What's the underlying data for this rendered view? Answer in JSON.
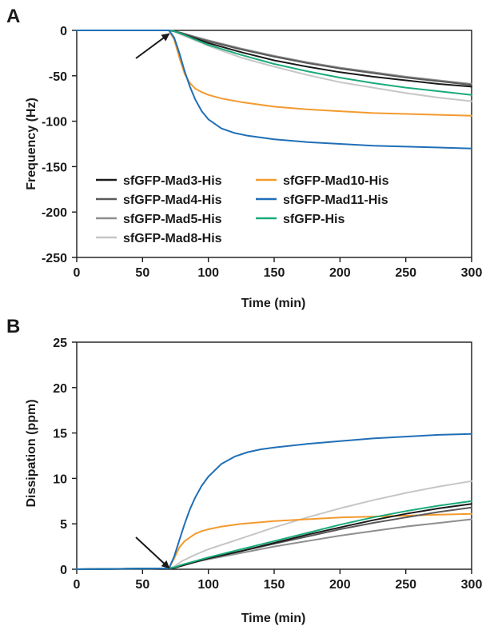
{
  "figure": {
    "panels": [
      {
        "label": "A"
      },
      {
        "label": "B"
      }
    ]
  },
  "chart_data": [
    {
      "type": "line",
      "panel": "A",
      "title": "",
      "xlabel": "Time (min)",
      "ylabel": "Frequency (Hz)",
      "xlim": [
        0,
        300
      ],
      "ylim": [
        -250,
        0
      ],
      "xticks": [
        0,
        50,
        100,
        150,
        200,
        250,
        300
      ],
      "yticks": [
        0,
        -50,
        -100,
        -150,
        -200,
        -250
      ],
      "grid": false,
      "legend_position": "bottom-left",
      "annotation": {
        "type": "arrow",
        "points_to": [
          72,
          -2
        ]
      },
      "series": [
        {
          "name": "sfGFP-Mad3-His",
          "color": "#1a1a1a",
          "x": [
            0,
            70,
            74,
            80,
            90,
            100,
            125,
            150,
            175,
            200,
            225,
            250,
            275,
            300
          ],
          "values": [
            0,
            0,
            -1,
            -4,
            -9,
            -14,
            -24,
            -33,
            -40,
            -46,
            -51,
            -55,
            -59,
            -62
          ]
        },
        {
          "name": "sfGFP-Mad4-His",
          "color": "#5a5a5a",
          "x": [
            0,
            70,
            74,
            80,
            90,
            100,
            125,
            150,
            175,
            200,
            225,
            250,
            275,
            300
          ],
          "values": [
            0,
            0,
            -1,
            -3,
            -8,
            -12,
            -21,
            -29,
            -36,
            -42,
            -47,
            -52,
            -56,
            -60
          ]
        },
        {
          "name": "sfGFP-Mad5-His",
          "color": "#8e8e8e",
          "x": [
            0,
            70,
            74,
            80,
            90,
            100,
            125,
            150,
            175,
            200,
            225,
            250,
            275,
            300
          ],
          "values": [
            0,
            0,
            -1,
            -3,
            -7,
            -11,
            -20,
            -28,
            -35,
            -41,
            -46,
            -51,
            -55,
            -59
          ]
        },
        {
          "name": "sfGFP-Mad8-His",
          "color": "#c6c6c6",
          "x": [
            0,
            70,
            74,
            80,
            90,
            100,
            125,
            150,
            175,
            200,
            225,
            250,
            275,
            300
          ],
          "values": [
            0,
            0,
            -1,
            -5,
            -11,
            -17,
            -30,
            -40,
            -49,
            -57,
            -63,
            -69,
            -74,
            -78
          ]
        },
        {
          "name": "sfGFP-Mad10-His",
          "color": "#f39a2e",
          "x": [
            0,
            70,
            74,
            78,
            82,
            86,
            90,
            95,
            100,
            110,
            125,
            150,
            175,
            200,
            225,
            250,
            275,
            300
          ],
          "values": [
            0,
            0,
            -10,
            -30,
            -48,
            -58,
            -64,
            -68,
            -71,
            -75,
            -79,
            -84,
            -87,
            -89,
            -91,
            -92,
            -93,
            -94
          ]
        },
        {
          "name": "sfGFP-Mad11-His",
          "color": "#1f6fb7",
          "x": [
            0,
            70,
            74,
            78,
            82,
            86,
            90,
            95,
            100,
            110,
            120,
            130,
            140,
            150,
            175,
            200,
            225,
            250,
            275,
            300
          ],
          "values": [
            0,
            0,
            -8,
            -25,
            -45,
            -62,
            -76,
            -89,
            -98,
            -108,
            -113,
            -116,
            -118,
            -120,
            -123,
            -125,
            -127,
            -128,
            -129,
            -130
          ]
        },
        {
          "name": "sfGFP-His",
          "color": "#1aaa7d",
          "x": [
            0,
            70,
            74,
            80,
            90,
            100,
            125,
            150,
            175,
            200,
            225,
            250,
            275,
            300
          ],
          "values": [
            0,
            0,
            -1,
            -4,
            -10,
            -16,
            -27,
            -37,
            -45,
            -52,
            -58,
            -63,
            -67,
            -71
          ]
        }
      ]
    },
    {
      "type": "line",
      "panel": "B",
      "title": "",
      "xlabel": "Time (min)",
      "ylabel": "Dissipation (ppm)",
      "xlim": [
        0,
        300
      ],
      "ylim": [
        0,
        25
      ],
      "xticks": [
        0,
        50,
        100,
        150,
        200,
        250,
        300
      ],
      "yticks": [
        0,
        5,
        10,
        15,
        20,
        25
      ],
      "grid": false,
      "annotation": {
        "type": "arrow",
        "points_to": [
          72,
          0.3
        ]
      },
      "series": [
        {
          "name": "sfGFP-Mad3-His",
          "color": "#1a1a1a",
          "x": [
            0,
            70,
            74,
            80,
            90,
            100,
            125,
            150,
            175,
            200,
            225,
            250,
            275,
            300
          ],
          "values": [
            0,
            0.1,
            0.15,
            0.4,
            0.8,
            1.2,
            2.0,
            2.9,
            3.8,
            4.6,
            5.4,
            6.1,
            6.7,
            7.2
          ]
        },
        {
          "name": "sfGFP-Mad4-His",
          "color": "#5a5a5a",
          "x": [
            0,
            70,
            74,
            80,
            90,
            100,
            125,
            150,
            175,
            200,
            225,
            250,
            275,
            300
          ],
          "values": [
            0,
            0.1,
            0.15,
            0.4,
            0.8,
            1.2,
            2.0,
            2.8,
            3.6,
            4.4,
            5.1,
            5.7,
            6.3,
            6.8
          ]
        },
        {
          "name": "sfGFP-Mad5-His",
          "color": "#8e8e8e",
          "x": [
            0,
            70,
            74,
            80,
            90,
            100,
            125,
            150,
            175,
            200,
            225,
            250,
            275,
            300
          ],
          "values": [
            0,
            0.1,
            0.15,
            0.4,
            0.8,
            1.1,
            1.8,
            2.5,
            3.1,
            3.7,
            4.2,
            4.7,
            5.1,
            5.5
          ]
        },
        {
          "name": "sfGFP-Mad8-His",
          "color": "#c6c6c6",
          "x": [
            0,
            70,
            74,
            80,
            90,
            100,
            125,
            150,
            175,
            200,
            225,
            250,
            275,
            300
          ],
          "values": [
            0,
            0.1,
            0.3,
            0.9,
            1.6,
            2.2,
            3.4,
            4.6,
            5.7,
            6.7,
            7.6,
            8.4,
            9.1,
            9.7
          ]
        },
        {
          "name": "sfGFP-Mad10-His",
          "color": "#f39a2e",
          "x": [
            0,
            70,
            74,
            78,
            82,
            86,
            90,
            95,
            100,
            110,
            125,
            150,
            175,
            200,
            225,
            250,
            275,
            300
          ],
          "values": [
            0,
            0.1,
            1.2,
            2.4,
            3.1,
            3.5,
            3.9,
            4.2,
            4.4,
            4.7,
            5.0,
            5.3,
            5.5,
            5.7,
            5.8,
            5.9,
            6.0,
            6.1
          ]
        },
        {
          "name": "sfGFP-Mad11-His",
          "color": "#1f6fb7",
          "x": [
            0,
            70,
            74,
            78,
            82,
            86,
            90,
            95,
            100,
            110,
            120,
            130,
            140,
            150,
            175,
            200,
            225,
            250,
            275,
            300
          ],
          "values": [
            0,
            0.1,
            1.4,
            3.2,
            5.0,
            6.6,
            7.9,
            9.2,
            10.2,
            11.6,
            12.4,
            12.9,
            13.2,
            13.4,
            13.8,
            14.1,
            14.4,
            14.6,
            14.8,
            14.9
          ]
        },
        {
          "name": "sfGFP-His",
          "color": "#1aaa7d",
          "x": [
            0,
            70,
            74,
            80,
            90,
            100,
            125,
            150,
            175,
            200,
            225,
            250,
            275,
            300
          ],
          "values": [
            0,
            0.1,
            0.2,
            0.5,
            0.9,
            1.3,
            2.2,
            3.1,
            4.0,
            4.9,
            5.7,
            6.4,
            7.0,
            7.5
          ]
        }
      ]
    }
  ]
}
